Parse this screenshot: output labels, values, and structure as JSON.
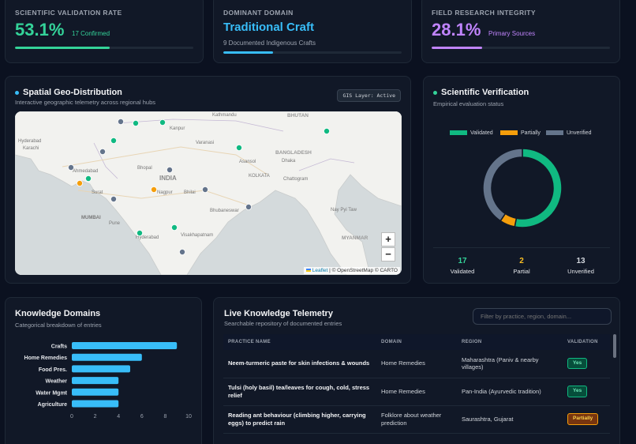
{
  "kpis": [
    {
      "title": "SCIENTIFIC VALIDATION RATE",
      "value": "53.1%",
      "sub": "17 Confirmed",
      "progress": 0.531,
      "color": "#34d399"
    },
    {
      "title": "DOMINANT DOMAIN",
      "value": "Traditional Craft",
      "sub": "9 Documented Indigenous Crafts",
      "progress": 0.28,
      "color": "#38bdf8"
    },
    {
      "title": "FIELD RESEARCH INTEGRITY",
      "value": "28.1%",
      "sub": "Primary Sources",
      "progress": 0.281,
      "color": "#c084fc"
    }
  ],
  "geo": {
    "title": "Spatial Geo-Distribution",
    "subtitle": "Interactive geographic telemetry across regional hubs",
    "badge": "GIS Layer: Active",
    "labels": [
      "Kathmandu",
      "BHUTAN",
      "Kanpur",
      "Varanasi",
      "Asansol",
      "BANGLADESH",
      "Dhaka",
      "Karachi",
      "Hyderabad",
      "Ahmedabad",
      "Bhopal",
      "INDIA",
      "KOLKATA",
      "Chattogram",
      "Surat",
      "Nagpur",
      "Bhilai",
      "Bhubaneswar",
      "Nay Pyi Taw",
      "MUMBAI",
      "Pune",
      "Hyderabad",
      "Visakhapatnam",
      "MYANMAR"
    ],
    "zoom_in": "+",
    "zoom_out": "−",
    "attribution_leaflet": "Leaflet",
    "attribution_rest": "| © OpenStreetMap © CARTO"
  },
  "verification": {
    "title": "Scientific Verification",
    "subtitle": "Empirical evaluation status",
    "legend": [
      {
        "label": "Validated",
        "color": "#10b981"
      },
      {
        "label": "Partially",
        "color": "#f59e0b"
      },
      {
        "label": "Unverified",
        "color": "#64748b"
      }
    ],
    "stats": [
      {
        "value": "17",
        "label": "Validated",
        "color": "#34d399"
      },
      {
        "value": "2",
        "label": "Partial",
        "color": "#fbbf24"
      },
      {
        "value": "13",
        "label": "Unverified",
        "color": "#9ca3af"
      }
    ]
  },
  "chart_data": {
    "type": "bar",
    "orientation": "horizontal",
    "title": "Knowledge Domains",
    "subtitle": "Categorical breakdown of entries",
    "categories": [
      "Crafts",
      "Home Remedies",
      "Food Pres.",
      "Weather",
      "Water Mgmt",
      "Agriculture"
    ],
    "values": [
      9,
      6,
      5,
      4,
      4,
      4
    ],
    "xlim": [
      0,
      10
    ],
    "xticks": [
      "0",
      "2",
      "4",
      "6",
      "8",
      "10"
    ],
    "color": "#38bdf8"
  },
  "telemetry": {
    "title": "Live Knowledge Telemetry",
    "subtitle": "Searchable repository of documented entries",
    "filter_placeholder": "Filter by practice, region, domain...",
    "columns": [
      "PRACTICE NAME",
      "DOMAIN",
      "REGION",
      "VALIDATION"
    ],
    "rows": [
      {
        "practice": "Neem-turmeric paste for skin infections & wounds",
        "domain": "Home Remedies",
        "region": "Maharashtra (Paniv & nearby villages)",
        "validation": "Yes"
      },
      {
        "practice": "Tulsi (holy basil) tea/leaves for cough, cold, stress relief",
        "domain": "Home Remedies",
        "region": "Pan-India (Ayurvedic tradition)",
        "validation": "Yes"
      },
      {
        "practice": "Reading ant behaviour (climbing higher, carrying eggs) to predict rain",
        "domain": "Folklore about weather prediction",
        "region": "Saurashtra, Gujarat",
        "validation": "Partially"
      }
    ]
  }
}
